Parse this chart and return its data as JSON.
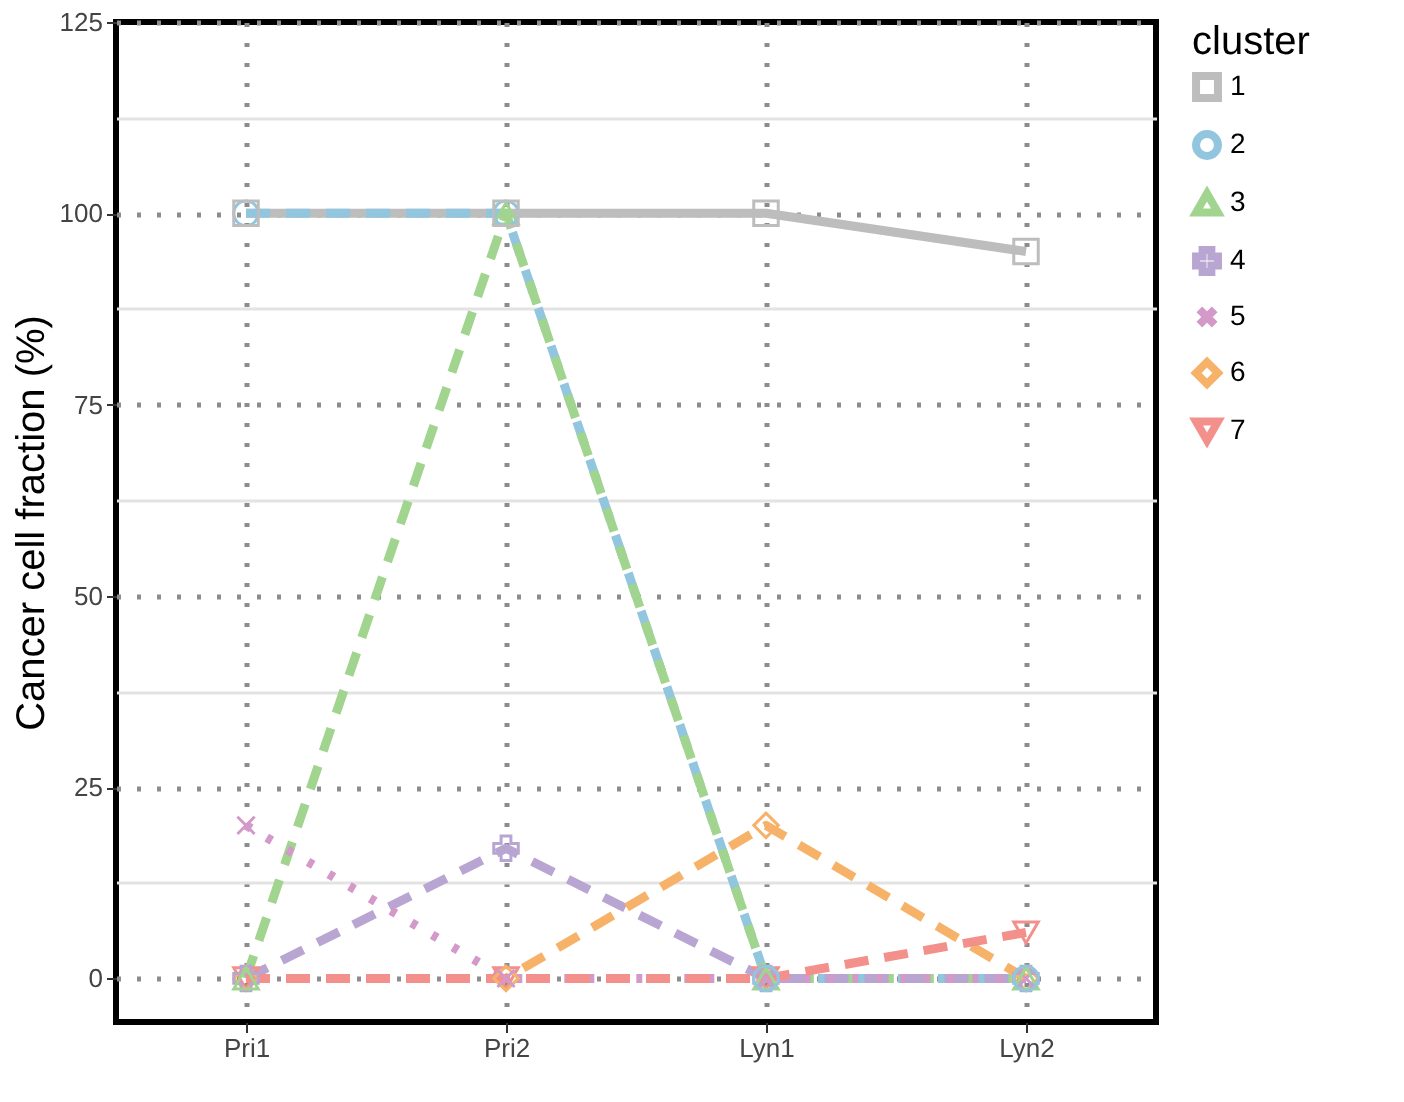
{
  "chart_data": {
    "type": "line",
    "ylabel": "Cancer cell fraction (%)",
    "legend_title": "cluster",
    "legend": "right",
    "grid": true,
    "categories": [
      "Pri1",
      "Pri2",
      "Lyn1",
      "Lyn2"
    ],
    "ylim": [
      -5.7,
      125
    ],
    "yticks": [
      0,
      {
        "value": 12.5,
        "label": null
      },
      25,
      {
        "value": 37.5,
        "label": null
      },
      50,
      {
        "value": 62.5,
        "label": null
      },
      75,
      {
        "value": 87.5,
        "label": null
      },
      100,
      {
        "value": 112.5,
        "label": null
      },
      125
    ],
    "series": [
      {
        "name": "1",
        "color": "#bdbdbd",
        "marker": "square",
        "line_style": "solid",
        "values": [
          100,
          100,
          100,
          95
        ]
      },
      {
        "name": "2",
        "color": "#92c5de",
        "marker": "circle",
        "line_style": "dashed",
        "values": [
          100,
          100,
          0,
          0
        ]
      },
      {
        "name": "3",
        "color": "#a1d48e",
        "marker": "triangle",
        "line_style": "dashed",
        "values": [
          0,
          100,
          0,
          0
        ]
      },
      {
        "name": "4",
        "color": "#b9a5d1",
        "marker": "cross",
        "line_style": "dashed",
        "values": [
          0,
          17,
          0,
          0
        ]
      },
      {
        "name": "5",
        "color": "#d399c9",
        "marker": "x",
        "line_style": "dotted",
        "values": [
          20,
          0,
          0,
          0
        ]
      },
      {
        "name": "6",
        "color": "#f7b26a",
        "marker": "diamond",
        "line_style": "dashed",
        "values": [
          0,
          0,
          20,
          0
        ]
      },
      {
        "name": "7",
        "color": "#f4908c",
        "marker": "triangle-down",
        "line_style": "dashed",
        "values": [
          0,
          0,
          0,
          6
        ]
      }
    ]
  }
}
